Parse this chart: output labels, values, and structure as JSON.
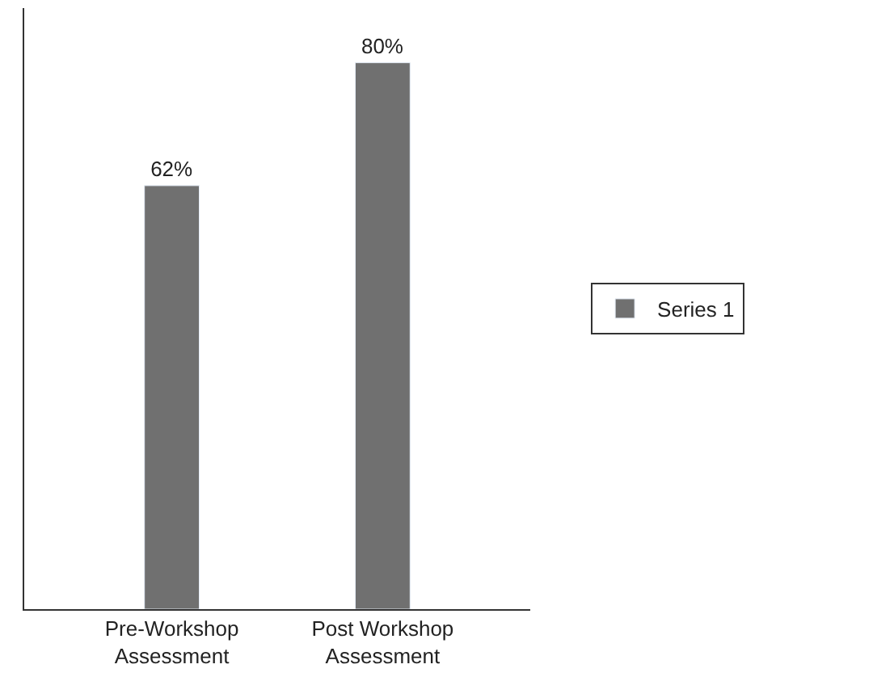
{
  "chart_data": {
    "type": "bar",
    "categories": [
      "Pre-Workshop Assessment",
      "Post Workshop Assessment"
    ],
    "series": [
      {
        "name": "Series 1",
        "color": "#707070",
        "values": [
          62,
          80
        ],
        "value_labels": [
          "62%",
          "80%"
        ]
      }
    ],
    "ylim": [
      0,
      88
    ],
    "legend": "right"
  }
}
